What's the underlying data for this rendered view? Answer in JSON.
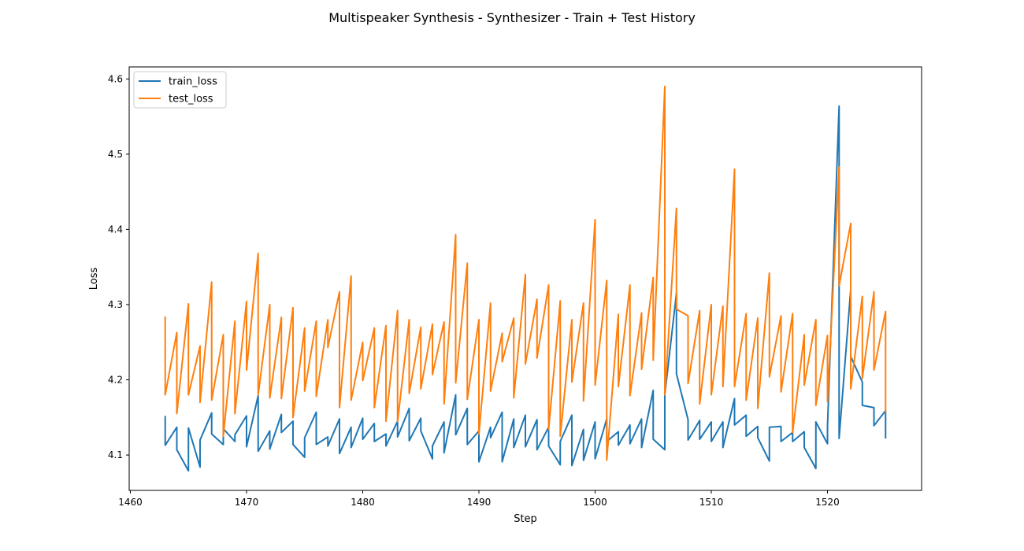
{
  "chart_data": {
    "type": "line",
    "title": "Multispeaker Synthesis - Synthesizer - Train + Test History",
    "xlabel": "Step",
    "ylabel": "Loss",
    "xlim": [
      1459.9,
      1528.1
    ],
    "ylim": [
      4.053,
      4.616
    ],
    "xticks": [
      1460,
      1470,
      1480,
      1490,
      1500,
      1510,
      1520
    ],
    "yticks": [
      4.1,
      4.2,
      4.3,
      4.4,
      4.5,
      4.6
    ],
    "grid": false,
    "legend": "upper-left",
    "series": [
      {
        "name": "train_loss",
        "color": "#1f77b4",
        "x": [
          1463,
          1463,
          1464,
          1464,
          1465,
          1465,
          1466,
          1466,
          1467,
          1467,
          1468,
          1468,
          1469,
          1469,
          1470,
          1470,
          1471,
          1471,
          1472,
          1472,
          1473,
          1473,
          1474,
          1474,
          1475,
          1475,
          1476,
          1476,
          1477,
          1477,
          1478,
          1478,
          1479,
          1479,
          1480,
          1480,
          1481,
          1481,
          1482,
          1482,
          1483,
          1483,
          1484,
          1484,
          1485,
          1485,
          1486,
          1486,
          1487,
          1487,
          1488,
          1488,
          1489,
          1489,
          1490,
          1490,
          1491,
          1491,
          1492,
          1492,
          1493,
          1493,
          1494,
          1494,
          1495,
          1495,
          1496,
          1496,
          1497,
          1497,
          1498,
          1498,
          1499,
          1499,
          1500,
          1500,
          1501,
          1501,
          1502,
          1502,
          1503,
          1503,
          1504,
          1504,
          1505,
          1505,
          1506,
          1506,
          1507,
          1507,
          1508,
          1508,
          1509,
          1509,
          1510,
          1510,
          1511,
          1511,
          1512,
          1512,
          1513,
          1513,
          1514,
          1514,
          1515,
          1515,
          1516,
          1516,
          1517,
          1517,
          1518,
          1518,
          1519,
          1519,
          1520,
          1520,
          1521,
          1521,
          1522,
          1522,
          1523,
          1523,
          1524,
          1524,
          1525,
          1525
        ],
        "y": [
          4.151,
          4.113,
          4.137,
          4.107,
          4.079,
          4.136,
          4.084,
          4.12,
          4.156,
          4.128,
          4.114,
          4.135,
          4.118,
          4.127,
          4.152,
          4.111,
          4.179,
          4.105,
          4.132,
          4.108,
          4.154,
          4.13,
          4.145,
          4.114,
          4.097,
          4.123,
          4.157,
          4.114,
          4.124,
          4.112,
          4.148,
          4.102,
          4.137,
          4.11,
          4.149,
          4.121,
          4.142,
          4.118,
          4.128,
          4.112,
          4.145,
          4.124,
          4.162,
          4.119,
          4.149,
          4.132,
          4.095,
          4.112,
          4.144,
          4.103,
          4.18,
          4.127,
          4.162,
          4.114,
          4.132,
          4.091,
          4.137,
          4.123,
          4.157,
          4.091,
          4.148,
          4.11,
          4.153,
          4.111,
          4.147,
          4.107,
          4.137,
          4.112,
          4.087,
          4.118,
          4.153,
          4.086,
          4.134,
          4.093,
          4.144,
          4.095,
          4.148,
          4.118,
          4.131,
          4.113,
          4.14,
          4.115,
          4.148,
          4.11,
          4.186,
          4.121,
          4.107,
          4.18,
          4.315,
          4.208,
          4.147,
          4.12,
          4.146,
          4.121,
          4.144,
          4.118,
          4.144,
          4.11,
          4.175,
          4.14,
          4.153,
          4.125,
          4.138,
          4.123,
          4.092,
          4.137,
          4.138,
          4.118,
          4.13,
          4.118,
          4.131,
          4.11,
          4.082,
          4.144,
          4.115,
          4.138,
          4.564,
          4.122,
          4.32,
          4.231,
          4.197,
          4.166,
          4.163,
          4.139,
          4.159,
          4.123
        ]
      },
      {
        "name": "test_loss",
        "color": "#ff7f0e",
        "x": [
          1463,
          1463,
          1464,
          1464,
          1465,
          1465,
          1466,
          1466,
          1467,
          1467,
          1468,
          1468,
          1469,
          1469,
          1470,
          1470,
          1471,
          1471,
          1472,
          1472,
          1473,
          1473,
          1474,
          1474,
          1475,
          1475,
          1476,
          1476,
          1477,
          1477,
          1478,
          1478,
          1479,
          1479,
          1480,
          1480,
          1481,
          1481,
          1482,
          1482,
          1483,
          1483,
          1484,
          1484,
          1485,
          1485,
          1486,
          1486,
          1487,
          1487,
          1488,
          1488,
          1489,
          1489,
          1490,
          1490,
          1491,
          1491,
          1492,
          1492,
          1493,
          1493,
          1494,
          1494,
          1495,
          1495,
          1496,
          1496,
          1497,
          1497,
          1498,
          1498,
          1499,
          1499,
          1500,
          1500,
          1501,
          1501,
          1502,
          1502,
          1503,
          1503,
          1504,
          1504,
          1505,
          1505,
          1506,
          1506,
          1507,
          1507,
          1508,
          1508,
          1509,
          1509,
          1510,
          1510,
          1511,
          1511,
          1512,
          1512,
          1513,
          1513,
          1514,
          1514,
          1515,
          1515,
          1516,
          1516,
          1517,
          1517,
          1518,
          1518,
          1519,
          1519,
          1520,
          1520,
          1521,
          1521,
          1522,
          1522,
          1523,
          1523,
          1524,
          1524,
          1525,
          1525
        ],
        "y": [
          4.283,
          4.18,
          4.263,
          4.155,
          4.301,
          4.18,
          4.245,
          4.17,
          4.33,
          4.173,
          4.26,
          4.125,
          4.278,
          4.155,
          4.304,
          4.213,
          4.368,
          4.18,
          4.3,
          4.176,
          4.283,
          4.175,
          4.296,
          4.15,
          4.269,
          4.185,
          4.278,
          4.178,
          4.28,
          4.243,
          4.317,
          4.163,
          4.338,
          4.173,
          4.25,
          4.199,
          4.269,
          4.163,
          4.272,
          4.145,
          4.292,
          4.144,
          4.28,
          4.182,
          4.27,
          4.188,
          4.274,
          4.207,
          4.277,
          4.168,
          4.393,
          4.196,
          4.355,
          4.174,
          4.28,
          4.128,
          4.302,
          4.185,
          4.262,
          4.224,
          4.282,
          4.176,
          4.34,
          4.221,
          4.307,
          4.229,
          4.326,
          4.134,
          4.305,
          4.125,
          4.28,
          4.197,
          4.302,
          4.172,
          4.413,
          4.193,
          4.332,
          4.093,
          4.287,
          4.191,
          4.326,
          4.179,
          4.289,
          4.214,
          4.336,
          4.226,
          4.59,
          4.18,
          4.428,
          4.294,
          4.285,
          4.195,
          4.292,
          4.168,
          4.3,
          4.18,
          4.298,
          4.191,
          4.48,
          4.191,
          4.288,
          4.173,
          4.282,
          4.162,
          4.342,
          4.204,
          4.285,
          4.184,
          4.288,
          4.13,
          4.26,
          4.193,
          4.28,
          4.166,
          4.259,
          4.171,
          4.483,
          4.325,
          4.408,
          4.188,
          4.311,
          4.202,
          4.317,
          4.213,
          4.291,
          4.157
        ]
      }
    ]
  }
}
